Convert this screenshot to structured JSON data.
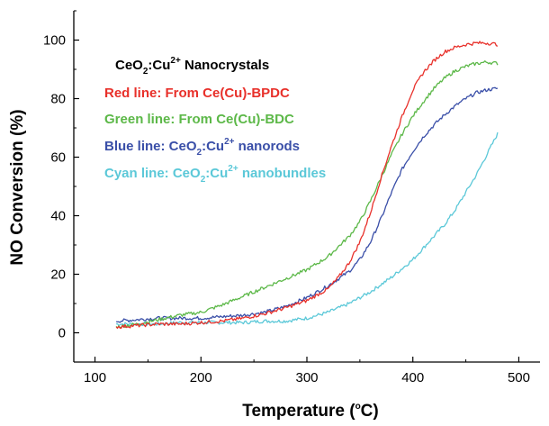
{
  "chart_data": {
    "type": "line",
    "title": "",
    "xlabel": {
      "main": "Temperature (",
      "sup": "o",
      "tail": "C)"
    },
    "ylabel": "NO Conversion (%)",
    "xlim": [
      80,
      520
    ],
    "ylim": [
      -10,
      110
    ],
    "xticks": [
      100,
      200,
      300,
      400,
      500
    ],
    "yticks": [
      0,
      20,
      40,
      60,
      80,
      100
    ],
    "legend_heading": {
      "a": "CeO",
      "sub": "2",
      "b": ":Cu",
      "sup": "2+",
      "c": " Nanocrystals"
    },
    "series": [
      {
        "name": "Red line: From Ce(Cu)-BPDC",
        "legend": {
          "a": "Red line: From Ce(Cu)-BPDC"
        },
        "color": "#e8302a",
        "x": [
          120,
          140,
          160,
          180,
          200,
          220,
          240,
          260,
          280,
          300,
          320,
          330,
          340,
          350,
          360,
          370,
          380,
          390,
          400,
          410,
          420,
          430,
          440,
          450,
          460,
          470,
          480
        ],
        "y": [
          2,
          2.5,
          3,
          3,
          3.5,
          4,
          5,
          6.5,
          8.5,
          11,
          15,
          19,
          24,
          31,
          41,
          53,
          64,
          74,
          83,
          89,
          93,
          96,
          97.5,
          98.5,
          99,
          99,
          98.5
        ]
      },
      {
        "name": "Green line: From Ce(Cu)-BDC",
        "legend": {
          "a": "Green line: From Ce(Cu)-BDC"
        },
        "color": "#5cb848",
        "x": [
          120,
          140,
          160,
          180,
          200,
          220,
          240,
          260,
          280,
          300,
          320,
          340,
          350,
          360,
          370,
          380,
          390,
          400,
          410,
          420,
          430,
          440,
          450,
          460,
          470,
          480
        ],
        "y": [
          2,
          3,
          4.5,
          6,
          7,
          9.5,
          12.5,
          15.5,
          18.5,
          21.5,
          26,
          33,
          38,
          45,
          53,
          61,
          68,
          74,
          79,
          83.5,
          87,
          89.5,
          91,
          92,
          92.5,
          92
        ]
      },
      {
        "name": "Blue line: CeO2:Cu2+ nanorods",
        "legend": {
          "a": "Blue line: CeO",
          "sub": "2",
          "b": ":Cu",
          "sup": "2+",
          "c": " nanorods"
        },
        "color": "#3a4fa8",
        "x": [
          120,
          140,
          160,
          180,
          200,
          220,
          240,
          260,
          280,
          300,
          320,
          340,
          350,
          360,
          370,
          380,
          390,
          400,
          410,
          420,
          430,
          440,
          450,
          460,
          470,
          480
        ],
        "y": [
          4,
          4.5,
          5,
          5,
          5,
          5.5,
          6,
          7,
          9,
          12,
          16,
          21,
          25,
          31,
          39,
          48,
          56,
          62,
          67,
          71,
          74.5,
          77.5,
          80,
          82,
          83,
          83.5
        ]
      },
      {
        "name": "Cyan line: CeO2:Cu2+ nanobundles",
        "legend": {
          "a": "Cyan line: CeO",
          "sub": "2",
          "b": ":Cu",
          "sup": "2+",
          "c": " nanobundles"
        },
        "color": "#5bc8d8",
        "x": [
          120,
          140,
          160,
          180,
          200,
          220,
          240,
          260,
          280,
          300,
          320,
          340,
          360,
          380,
          400,
          410,
          420,
          430,
          440,
          450,
          460,
          470,
          480
        ],
        "y": [
          3,
          3,
          3,
          3.5,
          3.5,
          3.5,
          3.5,
          4,
          4,
          5,
          7,
          10,
          14,
          19,
          25,
          29,
          33,
          37,
          42,
          48,
          54,
          61,
          68
        ]
      }
    ]
  }
}
